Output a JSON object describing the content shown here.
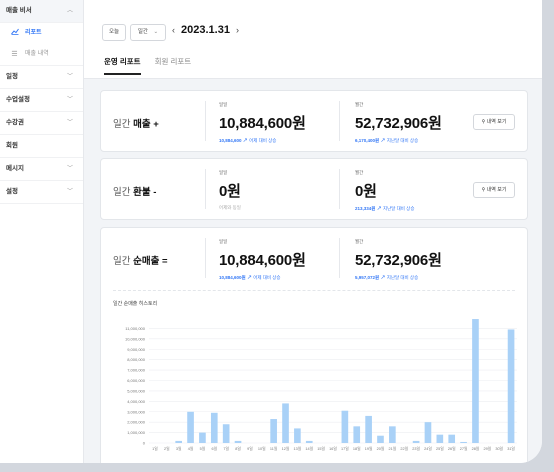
{
  "sidebar": {
    "items": [
      {
        "label": "매출 비서",
        "expanded": true
      },
      {
        "label": "일정"
      },
      {
        "label": "수업설정"
      },
      {
        "label": "수강권"
      },
      {
        "label": "회원"
      },
      {
        "label": "메시지"
      },
      {
        "label": "설정"
      }
    ],
    "subitems": [
      {
        "label": "리포트",
        "icon": "chart-line-icon",
        "active": true
      },
      {
        "label": "매출 내역",
        "icon": "list-icon",
        "active": false
      }
    ]
  },
  "topbar": {
    "today_label": "오늘",
    "period_label": "일간",
    "date": "2023.1.31"
  },
  "tabs": [
    {
      "label": "운영 리포트",
      "active": true
    },
    {
      "label": "회원 리포트",
      "active": false
    }
  ],
  "cards": {
    "sales": {
      "title_prefix": "일간",
      "title_main": "매출",
      "title_suffix": "+",
      "daily_label": "일일",
      "daily_value": "10,884,600원",
      "daily_sub_value": "10,884,600",
      "daily_sub_text": "어제 대비 상승",
      "month_label": "월간",
      "month_value": "52,732,906원",
      "month_sub_value": "6,170,400원",
      "month_sub_text": "지난달 대비 상승",
      "detail_label": "내역 보기"
    },
    "refund": {
      "title_prefix": "일간",
      "title_main": "환불",
      "title_suffix": "-",
      "daily_label": "일일",
      "daily_value": "0원",
      "daily_sub_text": "어제와 동일",
      "month_label": "월간",
      "month_value": "0원",
      "month_sub_value": "213,334원",
      "month_sub_text": "지난달 대비 상승",
      "detail_label": "내역 보기"
    },
    "net": {
      "title_prefix": "일간",
      "title_main": "순매출",
      "title_suffix": "=",
      "daily_label": "일일",
      "daily_value": "10,884,600원",
      "daily_sub_value": "10,884,600원",
      "daily_sub_text": "어제 대비 상승",
      "month_label": "월간",
      "month_value": "52,732,906원",
      "month_sub_value": "5,957,072원",
      "month_sub_text": "지난달 대비 상승"
    }
  },
  "chart_data": {
    "type": "bar",
    "title": "일간 순매출 히스토리",
    "categories": [
      "1일",
      "2일",
      "3일",
      "4일",
      "5일",
      "6일",
      "7일",
      "8일",
      "9일",
      "10일",
      "11일",
      "12일",
      "13일",
      "14일",
      "15일",
      "16일",
      "17일",
      "18일",
      "19일",
      "20일",
      "21일",
      "22일",
      "23일",
      "24일",
      "25일",
      "26일",
      "27일",
      "28일",
      "29일",
      "30일",
      "31일"
    ],
    "values": [
      0,
      0,
      200000,
      3000000,
      1000000,
      2900000,
      1800000,
      200000,
      0,
      0,
      2300000,
      3800000,
      1400000,
      200000,
      0,
      0,
      3100000,
      1600000,
      2600000,
      700000,
      1600000,
      0,
      200000,
      2000000,
      800000,
      800000,
      100000,
      11900000,
      0,
      0,
      10900000
    ],
    "ylim": [
      0,
      12000000
    ],
    "yticks": [
      "0",
      "1,000,000",
      "2,000,000",
      "3,000,000",
      "4,000,000",
      "5,000,000",
      "6,000,000",
      "7,000,000",
      "8,000,000",
      "9,000,000",
      "10,000,000",
      "11,000,000"
    ],
    "bar_color": "#a9d1f7"
  }
}
